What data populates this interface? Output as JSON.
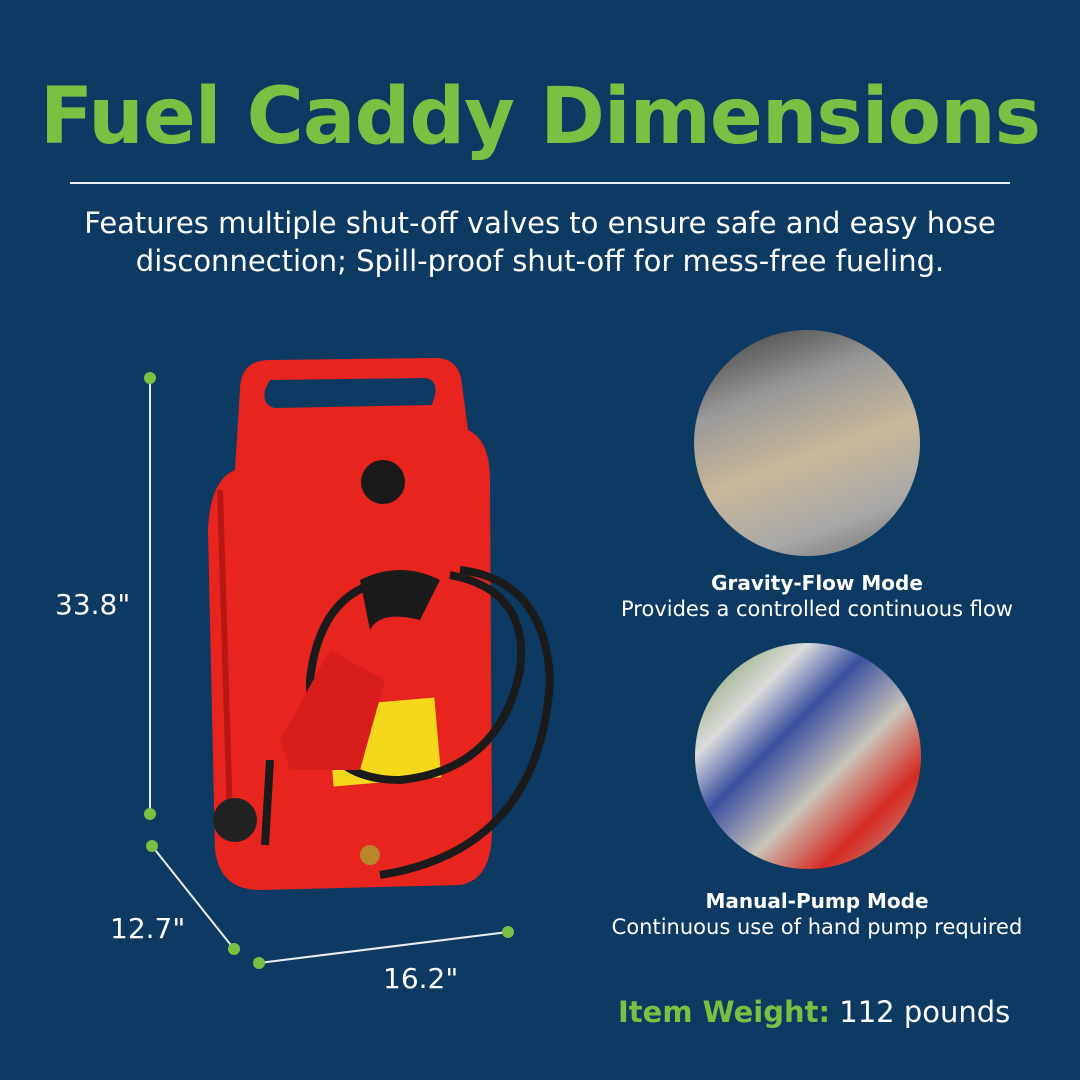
{
  "title": "Fuel Caddy Dimensions",
  "subtitle": "Features multiple shut-off valves to ensure safe and easy hose disconnection; Spill-proof shut-off for mess-free fueling.",
  "dimensions": {
    "height": "33.8\"",
    "depth": "12.7\"",
    "width": "16.2\""
  },
  "modes": [
    {
      "title": "Gravity-Flow Mode",
      "description": "Provides a controlled continuous flow"
    },
    {
      "title": "Manual-Pump Mode",
      "description": "Continuous use of hand pump required"
    }
  ],
  "weight": {
    "label": "Item Weight:",
    "value": "112 pounds"
  },
  "colors": {
    "background": "#0c3a62",
    "accent": "#7ac143",
    "product": "#e8241f"
  }
}
